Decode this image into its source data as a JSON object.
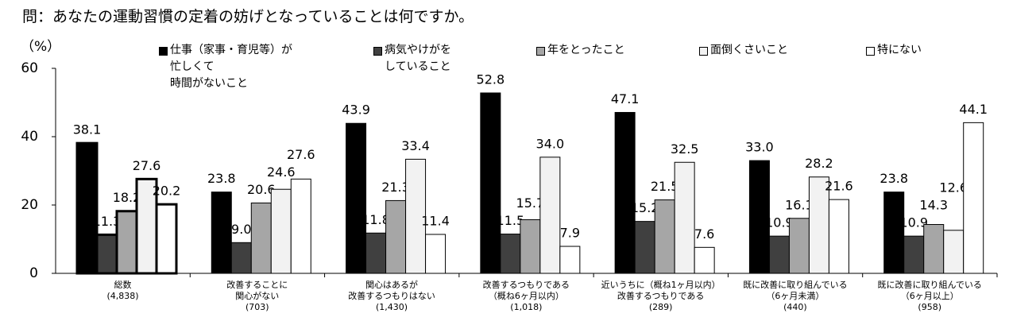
{
  "chart_data": {
    "type": "bar",
    "title": "問：あなたの運動習慣の定着の妨げとなっていることは何ですか。",
    "y_label": "（%）",
    "categories": [
      "総数\n(4,838)",
      "改善することに\n関心がない\n(703)",
      "関心はあるが\n改善するつもりはない\n(1,430)",
      "改善するつもりである\n（概ね6ヶ月以内）\n(1,018)",
      "近いうちに（概ね1ヶ月以内）\n改善するつもりである\n(289)",
      "既に改善に取り組んでいる\n（6ヶ月未満）\n(440)",
      "既に改善に取り組んでいる\n（6ヶ月以上）\n(958)"
    ],
    "series": [
      {
        "name": "仕事（家事・育児等）が\n忙しくて\n時間がないこと",
        "color": "#000000",
        "values": [
          38.1,
          23.8,
          43.9,
          52.8,
          47.1,
          33.0,
          23.8
        ],
        "value_labels": [
          "38.1",
          "23.8",
          "43.9",
          "52.8",
          "47.1",
          "33.0",
          "23.8"
        ]
      },
      {
        "name": "病気やけがを\nしていること",
        "color": "#404040",
        "values": [
          11.3,
          9.0,
          11.8,
          11.5,
          15.2,
          10.9,
          10.9
        ],
        "value_labels": [
          "11.3",
          "9.0",
          "11.8",
          "11.5",
          "15.2",
          "10.9",
          "10.9"
        ]
      },
      {
        "name": "年をとったこと",
        "color": "#a6a6a6",
        "values": [
          18.2,
          20.6,
          21.3,
          15.7,
          21.5,
          16.1,
          14.3
        ],
        "value_labels": [
          "18.2",
          "20.6",
          "21.3",
          "15.7",
          "21.5",
          "16.1",
          "14.3"
        ]
      },
      {
        "name": "面倒くさいこと",
        "color": "#f2f2f2",
        "values": [
          27.6,
          24.6,
          33.4,
          34.0,
          32.5,
          28.2,
          12.6
        ],
        "value_labels": [
          "27.6",
          "24.6",
          "33.4",
          "34.0",
          "32.5",
          "28.2",
          "12.6"
        ]
      },
      {
        "name": "特にない",
        "color": "#ffffff",
        "values": [
          20.2,
          27.6,
          11.4,
          7.9,
          7.6,
          21.6,
          44.1
        ],
        "value_labels": [
          "20.2",
          "27.6",
          "11.4",
          "7.9",
          "7.6",
          "21.6",
          "44.1"
        ]
      }
    ],
    "ylim": [
      0,
      60
    ],
    "yticks": [
      0,
      20,
      40,
      60
    ],
    "grid": false
  }
}
